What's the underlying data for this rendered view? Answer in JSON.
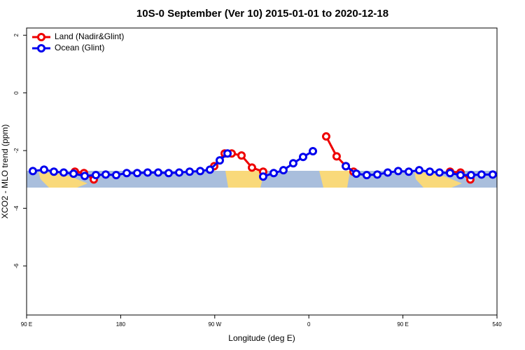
{
  "chart_data": {
    "type": "line",
    "title": "10S-0 September (Ver 10)   2015-01-01 to 2020-12-18",
    "x_label": "Longitude (deg E)",
    "y_label": "XCO2 - MLO trend (ppm)",
    "xlim": [
      90,
      540
    ],
    "xticks": [
      {
        "value": 90,
        "label": "90 E"
      },
      180,
      {
        "value": 270,
        "label": "90 W"
      },
      {
        "value": 360,
        "label": "0"
      },
      {
        "value": 450,
        "label": "90 E"
      },
      540
    ],
    "ylim": [
      -7.7,
      2.25
    ],
    "yticks": [
      2,
      0,
      -2,
      -4,
      -6
    ],
    "legend": "top-left",
    "series": [
      {
        "name": "Land (Nadir&Glint)",
        "color": "#ee0000",
        "x": [
          136.2,
          144.9,
          154.3,
          230,
          269.5,
          279.5,
          286.2,
          295.6,
          305.6,
          316.3,
          340,
          376.6,
          386.6,
          395.4,
          402.7,
          450,
          495.1,
          505.1,
          514.5
        ],
        "values": [
          -2.73,
          -2.78,
          -3.0,
          null,
          -2.54,
          -2.1,
          -2.1,
          -2.17,
          -2.59,
          -2.73,
          null,
          -1.51,
          -2.2,
          -2.54,
          -2.73,
          null,
          -2.73,
          -2.76,
          -3.0
        ]
      },
      {
        "name": "Ocean (Glint)",
        "color": "#0000ee",
        "x": [
          96.0,
          106.7,
          116.1,
          125.5,
          134.9,
          145.6,
          156.3,
          165.7,
          175.7,
          185.8,
          195.8,
          205.8,
          215.9,
          225.9,
          236.0,
          246.0,
          256.1,
          265.4,
          274.8,
          282.2,
          300,
          316.3,
          326.4,
          335.7,
          345.1,
          354.5,
          363.9,
          380,
          395.4,
          405.4,
          415.4,
          425.5,
          435.5,
          445.5,
          455.6,
          465.6,
          475.7,
          485.0,
          495.1,
          505.1,
          515.2,
          525.2,
          535.9
        ],
        "values": [
          -2.71,
          -2.66,
          -2.73,
          -2.76,
          -2.8,
          -2.88,
          -2.85,
          -2.83,
          -2.85,
          -2.78,
          -2.78,
          -2.76,
          -2.76,
          -2.78,
          -2.76,
          -2.73,
          -2.71,
          -2.66,
          -2.34,
          -2.1,
          null,
          -2.9,
          -2.78,
          -2.68,
          -2.44,
          -2.22,
          -2.02,
          null,
          -2.54,
          -2.8,
          -2.85,
          -2.83,
          -2.76,
          -2.71,
          -2.73,
          -2.68,
          -2.73,
          -2.76,
          -2.78,
          -2.85,
          -2.85,
          -2.83,
          -2.83
        ]
      }
    ]
  }
}
